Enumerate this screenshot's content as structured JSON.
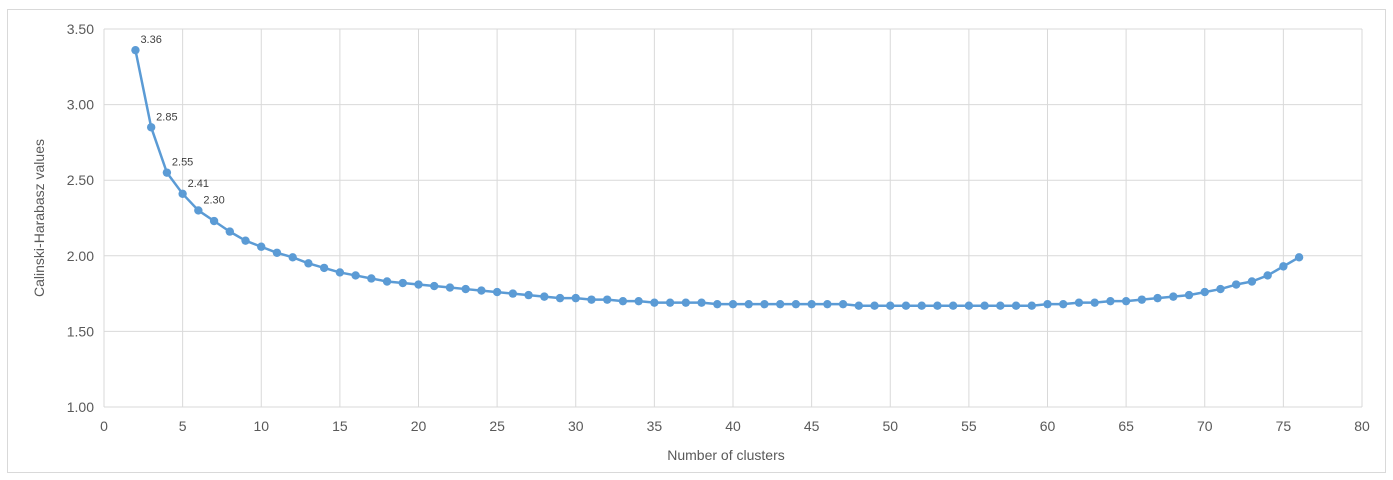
{
  "chart_data": {
    "type": "line",
    "title": "",
    "xlabel": "Number of clusters",
    "ylabel": "Calinski-Harabasz values",
    "xlim": [
      0,
      80
    ],
    "ylim": [
      1.0,
      3.5
    ],
    "x_ticks": [
      0,
      5,
      10,
      15,
      20,
      25,
      30,
      35,
      40,
      45,
      50,
      55,
      60,
      65,
      70,
      75,
      80
    ],
    "y_ticks": [
      "1.00",
      "1.50",
      "2.00",
      "2.50",
      "3.00",
      "3.50"
    ],
    "grid": true,
    "legend": "none",
    "series_color": "#5b9bd5",
    "series": [
      {
        "x": [
          2,
          3,
          4,
          5,
          6,
          7,
          8,
          9,
          10,
          11,
          12,
          13,
          14,
          15,
          16,
          17,
          18,
          19,
          20,
          21,
          22,
          23,
          24,
          25,
          26,
          27,
          28,
          29,
          30,
          31,
          32,
          33,
          34,
          35,
          36,
          37,
          38,
          39,
          40,
          41,
          42,
          43,
          44,
          45,
          46,
          47,
          48,
          49,
          50,
          51,
          52,
          53,
          54,
          55,
          56,
          57,
          58,
          59,
          60,
          61,
          62,
          63,
          64,
          65,
          66,
          67,
          68,
          69,
          70,
          71,
          72,
          73,
          74,
          75,
          76
        ],
        "values": [
          3.36,
          2.85,
          2.55,
          2.41,
          2.3,
          2.23,
          2.16,
          2.1,
          2.06,
          2.02,
          1.99,
          1.95,
          1.92,
          1.89,
          1.87,
          1.85,
          1.83,
          1.82,
          1.81,
          1.8,
          1.79,
          1.78,
          1.77,
          1.76,
          1.75,
          1.74,
          1.73,
          1.72,
          1.72,
          1.71,
          1.71,
          1.7,
          1.7,
          1.69,
          1.69,
          1.69,
          1.69,
          1.68,
          1.68,
          1.68,
          1.68,
          1.68,
          1.68,
          1.68,
          1.68,
          1.68,
          1.67,
          1.67,
          1.67,
          1.67,
          1.67,
          1.67,
          1.67,
          1.67,
          1.67,
          1.67,
          1.67,
          1.67,
          1.68,
          1.68,
          1.69,
          1.69,
          1.7,
          1.7,
          1.71,
          1.72,
          1.73,
          1.74,
          1.76,
          1.78,
          1.81,
          1.83,
          1.87,
          1.93,
          1.99
        ]
      }
    ],
    "data_labels": [
      {
        "x": 2,
        "text": "3.36"
      },
      {
        "x": 3,
        "text": "2.85"
      },
      {
        "x": 4,
        "text": "2.55"
      },
      {
        "x": 5,
        "text": "2.41"
      },
      {
        "x": 6,
        "text": "2.30"
      }
    ]
  }
}
